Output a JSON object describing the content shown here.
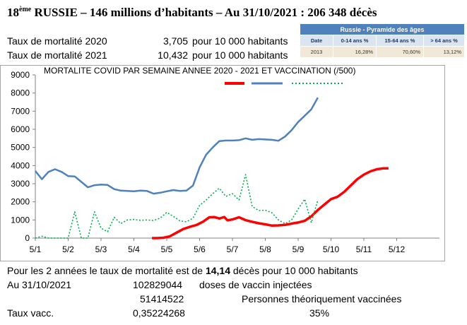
{
  "title": {
    "rank_number": "18",
    "rank_suffix": "ème",
    "text": "RUSSIE – 146 millions d’habitants – Au 31/10/2021 : 206 348 décès"
  },
  "mortality_rates": [
    {
      "label": "Taux de mortalité 2020",
      "value": "3,705",
      "unit": "pour 10 000 habitants"
    },
    {
      "label": "Taux de mortalité 2021",
      "value": "10,432",
      "unit": "pour 10 000 habitants"
    }
  ],
  "pyramid_table": {
    "title": "Russie - Pyramide des âges",
    "columns": [
      "Date",
      "0-14 ans %",
      "15-64 ans %",
      "> 64 ans %"
    ],
    "row": [
      "2013",
      "16,28%",
      "70,60%",
      "13,12%"
    ]
  },
  "chart_data": {
    "type": "line",
    "title": "MORTALITE COVID PAR SEMAINE ANNEE 2020 - 2021 ET VACCINATION (/500)",
    "ylim": [
      0,
      9000
    ],
    "yticks": [
      "0",
      "1000",
      "2000",
      "3000",
      "4000",
      "5000",
      "6000",
      "7000",
      "8000",
      "9000"
    ],
    "xticks": [
      "5/1",
      "5/2",
      "5/3",
      "5/4",
      "5/5",
      "5/6",
      "5/7",
      "5/8",
      "5/9",
      "5/10",
      "5/11",
      "5/12"
    ],
    "grid": false,
    "legend": "top",
    "series": [
      {
        "color": "#ff0000",
        "style": "solid-thick",
        "points": [
          [
            3.55,
            0
          ],
          [
            3.7,
            0
          ],
          [
            3.9,
            20
          ],
          [
            4.1,
            100
          ],
          [
            4.3,
            300
          ],
          [
            4.5,
            500
          ],
          [
            4.7,
            620
          ],
          [
            4.9,
            720
          ],
          [
            5.1,
            900
          ],
          [
            5.3,
            1150
          ],
          [
            5.45,
            1160
          ],
          [
            5.6,
            1080
          ],
          [
            5.75,
            1160
          ],
          [
            5.85,
            980
          ],
          [
            6.0,
            1030
          ],
          [
            6.2,
            1150
          ],
          [
            6.4,
            990
          ],
          [
            6.6,
            900
          ],
          [
            6.8,
            820
          ],
          [
            7.0,
            760
          ],
          [
            7.2,
            690
          ],
          [
            7.4,
            700
          ],
          [
            7.6,
            730
          ],
          [
            7.8,
            800
          ],
          [
            8.0,
            860
          ],
          [
            8.2,
            950
          ],
          [
            8.4,
            1200
          ],
          [
            8.6,
            1550
          ],
          [
            8.8,
            1850
          ],
          [
            9.0,
            2150
          ],
          [
            9.2,
            2280
          ],
          [
            9.4,
            2550
          ],
          [
            9.6,
            2900
          ],
          [
            9.8,
            3250
          ],
          [
            10.0,
            3500
          ],
          [
            10.2,
            3680
          ],
          [
            10.4,
            3800
          ],
          [
            10.6,
            3850
          ],
          [
            10.75,
            3850
          ]
        ]
      },
      {
        "color": "#4f81bd",
        "style": "solid",
        "points": [
          [
            0,
            3700
          ],
          [
            0.2,
            3250
          ],
          [
            0.4,
            3650
          ],
          [
            0.6,
            3800
          ],
          [
            0.8,
            3650
          ],
          [
            1.0,
            3420
          ],
          [
            1.2,
            3400
          ],
          [
            1.4,
            3100
          ],
          [
            1.6,
            2800
          ],
          [
            1.8,
            2920
          ],
          [
            2.0,
            2950
          ],
          [
            2.2,
            2930
          ],
          [
            2.4,
            2700
          ],
          [
            2.6,
            2620
          ],
          [
            2.8,
            2600
          ],
          [
            3.0,
            2580
          ],
          [
            3.2,
            2620
          ],
          [
            3.4,
            2600
          ],
          [
            3.6,
            2450
          ],
          [
            3.8,
            2500
          ],
          [
            4.0,
            2580
          ],
          [
            4.2,
            2650
          ],
          [
            4.4,
            2600
          ],
          [
            4.6,
            2620
          ],
          [
            4.8,
            2900
          ],
          [
            5.0,
            3900
          ],
          [
            5.2,
            4600
          ],
          [
            5.4,
            5000
          ],
          [
            5.6,
            5350
          ],
          [
            5.8,
            5380
          ],
          [
            6.0,
            5380
          ],
          [
            6.2,
            5400
          ],
          [
            6.4,
            5500
          ],
          [
            6.6,
            5420
          ],
          [
            6.8,
            5460
          ],
          [
            7.0,
            5440
          ],
          [
            7.2,
            5420
          ],
          [
            7.4,
            5370
          ],
          [
            7.6,
            5600
          ],
          [
            7.8,
            5950
          ],
          [
            8.0,
            6400
          ],
          [
            8.2,
            6750
          ],
          [
            8.4,
            7100
          ],
          [
            8.6,
            7750
          ]
        ]
      },
      {
        "color": "#00b050",
        "style": "dotted",
        "points": [
          [
            0,
            0
          ],
          [
            0.2,
            100
          ],
          [
            0.4,
            0
          ],
          [
            0.6,
            0
          ],
          [
            0.8,
            0
          ],
          [
            1.0,
            0
          ],
          [
            1.2,
            1450
          ],
          [
            1.4,
            0
          ],
          [
            1.6,
            0
          ],
          [
            1.8,
            1450
          ],
          [
            2.0,
            550
          ],
          [
            2.2,
            350
          ],
          [
            2.4,
            1150
          ],
          [
            2.6,
            800
          ],
          [
            2.8,
            1000
          ],
          [
            3.0,
            1030
          ],
          [
            3.2,
            980
          ],
          [
            3.4,
            1000
          ],
          [
            3.6,
            970
          ],
          [
            3.8,
            1100
          ],
          [
            4.0,
            1420
          ],
          [
            4.2,
            1200
          ],
          [
            4.4,
            950
          ],
          [
            4.6,
            900
          ],
          [
            4.8,
            1100
          ],
          [
            5.0,
            1800
          ],
          [
            5.2,
            2100
          ],
          [
            5.4,
            2450
          ],
          [
            5.6,
            2750
          ],
          [
            5.8,
            2300
          ],
          [
            6.0,
            2450
          ],
          [
            6.2,
            2100
          ],
          [
            6.4,
            3500
          ],
          [
            6.6,
            1750
          ],
          [
            6.8,
            1520
          ],
          [
            7.0,
            1540
          ],
          [
            7.2,
            1400
          ],
          [
            7.4,
            1000
          ],
          [
            7.6,
            800
          ],
          [
            7.8,
            1000
          ],
          [
            8.0,
            1600
          ],
          [
            8.2,
            2150
          ],
          [
            8.4,
            850
          ],
          [
            8.6,
            2100
          ]
        ]
      }
    ]
  },
  "footer": {
    "summary_prefix": "Pour les 2 années le taux de mortalité est de ",
    "summary_value": "14,14",
    "summary_suffix": " décès pour 10 000 habitants",
    "date_label": "Au 31/10/2021",
    "doses_value": "102829044",
    "doses_label": "doses de vaccin injectées",
    "vaccinated_value": "51414522",
    "vaccinated_label": "Personnes théoriquement vaccinées",
    "rate_label": "Taux vacc.",
    "rate_value": "0,35224268",
    "rate_percent": "35%"
  }
}
